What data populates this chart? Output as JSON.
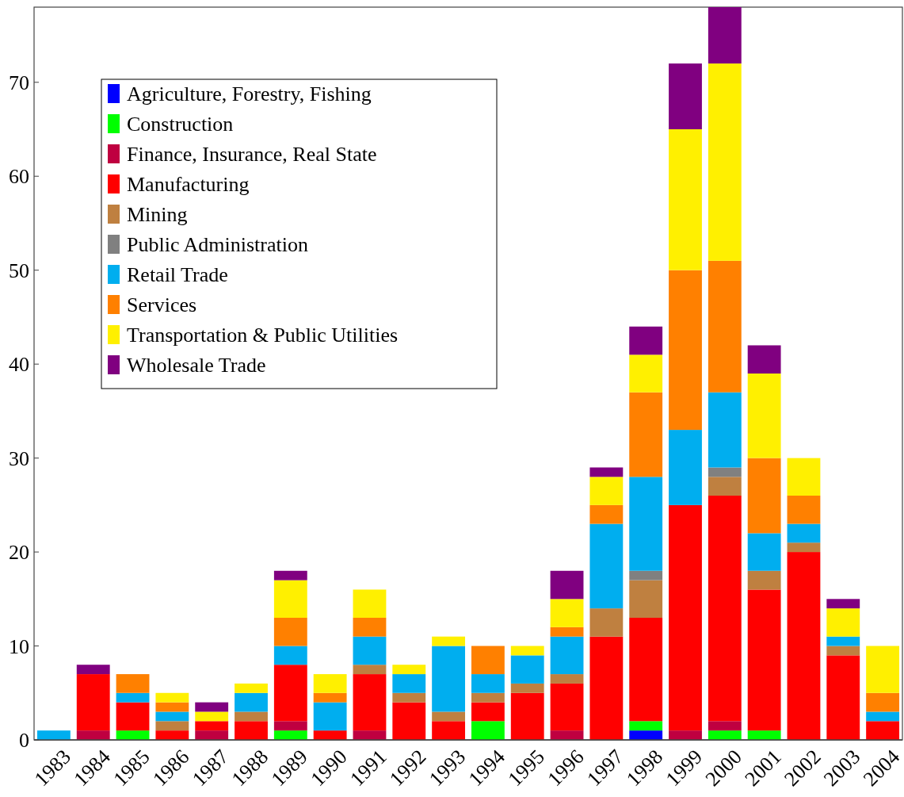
{
  "chart_data": {
    "type": "bar",
    "stacked": true,
    "categories": [
      "1983",
      "1984",
      "1985",
      "1986",
      "1987",
      "1988",
      "1989",
      "1990",
      "1991",
      "1992",
      "1993",
      "1994",
      "1995",
      "1996",
      "1997",
      "1998",
      "1999",
      "2000",
      "2001",
      "2002",
      "2003",
      "2004"
    ],
    "series": [
      {
        "name": "Agriculture, Forestry, Fishing",
        "color": "#0000ff",
        "values": [
          0,
          0,
          0,
          0,
          0,
          0,
          0,
          0,
          0,
          0,
          0,
          0,
          0,
          0,
          0,
          1,
          0,
          0,
          0,
          0,
          0,
          0
        ]
      },
      {
        "name": "Construction",
        "color": "#00ff00",
        "values": [
          0,
          0,
          1,
          0,
          0,
          0,
          1,
          0,
          0,
          0,
          0,
          2,
          0,
          0,
          0,
          1,
          0,
          1,
          1,
          0,
          0,
          0
        ]
      },
      {
        "name": "Finance, Insurance, Real State",
        "color": "#bf0040",
        "values": [
          0,
          1,
          0,
          0,
          1,
          0,
          1,
          0,
          1,
          0,
          0,
          0,
          0,
          1,
          0,
          0,
          1,
          1,
          0,
          0,
          0,
          0
        ]
      },
      {
        "name": "Manufacturing",
        "color": "#ff0000",
        "values": [
          0,
          6,
          3,
          1,
          1,
          2,
          6,
          1,
          6,
          4,
          2,
          2,
          5,
          5,
          11,
          11,
          24,
          24,
          15,
          20,
          9,
          2
        ]
      },
      {
        "name": "Mining",
        "color": "#bf8040",
        "values": [
          0,
          0,
          0,
          1,
          0,
          1,
          0,
          0,
          1,
          1,
          1,
          1,
          1,
          1,
          3,
          4,
          0,
          2,
          2,
          1,
          1,
          0
        ]
      },
      {
        "name": "Public Administration",
        "color": "#808080",
        "values": [
          0,
          0,
          0,
          0,
          0,
          0,
          0,
          0,
          0,
          0,
          0,
          0,
          0,
          0,
          0,
          1,
          0,
          1,
          0,
          0,
          0,
          0
        ]
      },
      {
        "name": "Retail Trade",
        "color": "#00aeef",
        "values": [
          1,
          0,
          1,
          1,
          0,
          2,
          2,
          3,
          3,
          2,
          7,
          2,
          3,
          4,
          9,
          10,
          8,
          8,
          4,
          2,
          1,
          1
        ]
      },
      {
        "name": "Services",
        "color": "#ff8000",
        "values": [
          0,
          0,
          2,
          1,
          0,
          0,
          3,
          1,
          2,
          0,
          0,
          3,
          0,
          1,
          2,
          9,
          17,
          14,
          8,
          3,
          0,
          2
        ]
      },
      {
        "name": "Transportation & Public Utilities",
        "color": "#fff000",
        "values": [
          0,
          0,
          0,
          1,
          1,
          1,
          4,
          2,
          3,
          1,
          1,
          0,
          1,
          3,
          3,
          4,
          15,
          21,
          9,
          4,
          3,
          5
        ]
      },
      {
        "name": "Wholesale Trade",
        "color": "#800080",
        "values": [
          0,
          1,
          0,
          0,
          1,
          0,
          1,
          0,
          0,
          0,
          0,
          0,
          0,
          3,
          1,
          3,
          7,
          6,
          3,
          0,
          1,
          0
        ]
      }
    ],
    "ylim": [
      0,
      78
    ],
    "yticks": [
      0,
      10,
      20,
      30,
      40,
      50,
      60,
      70
    ],
    "grid": false,
    "legend": "top left"
  }
}
